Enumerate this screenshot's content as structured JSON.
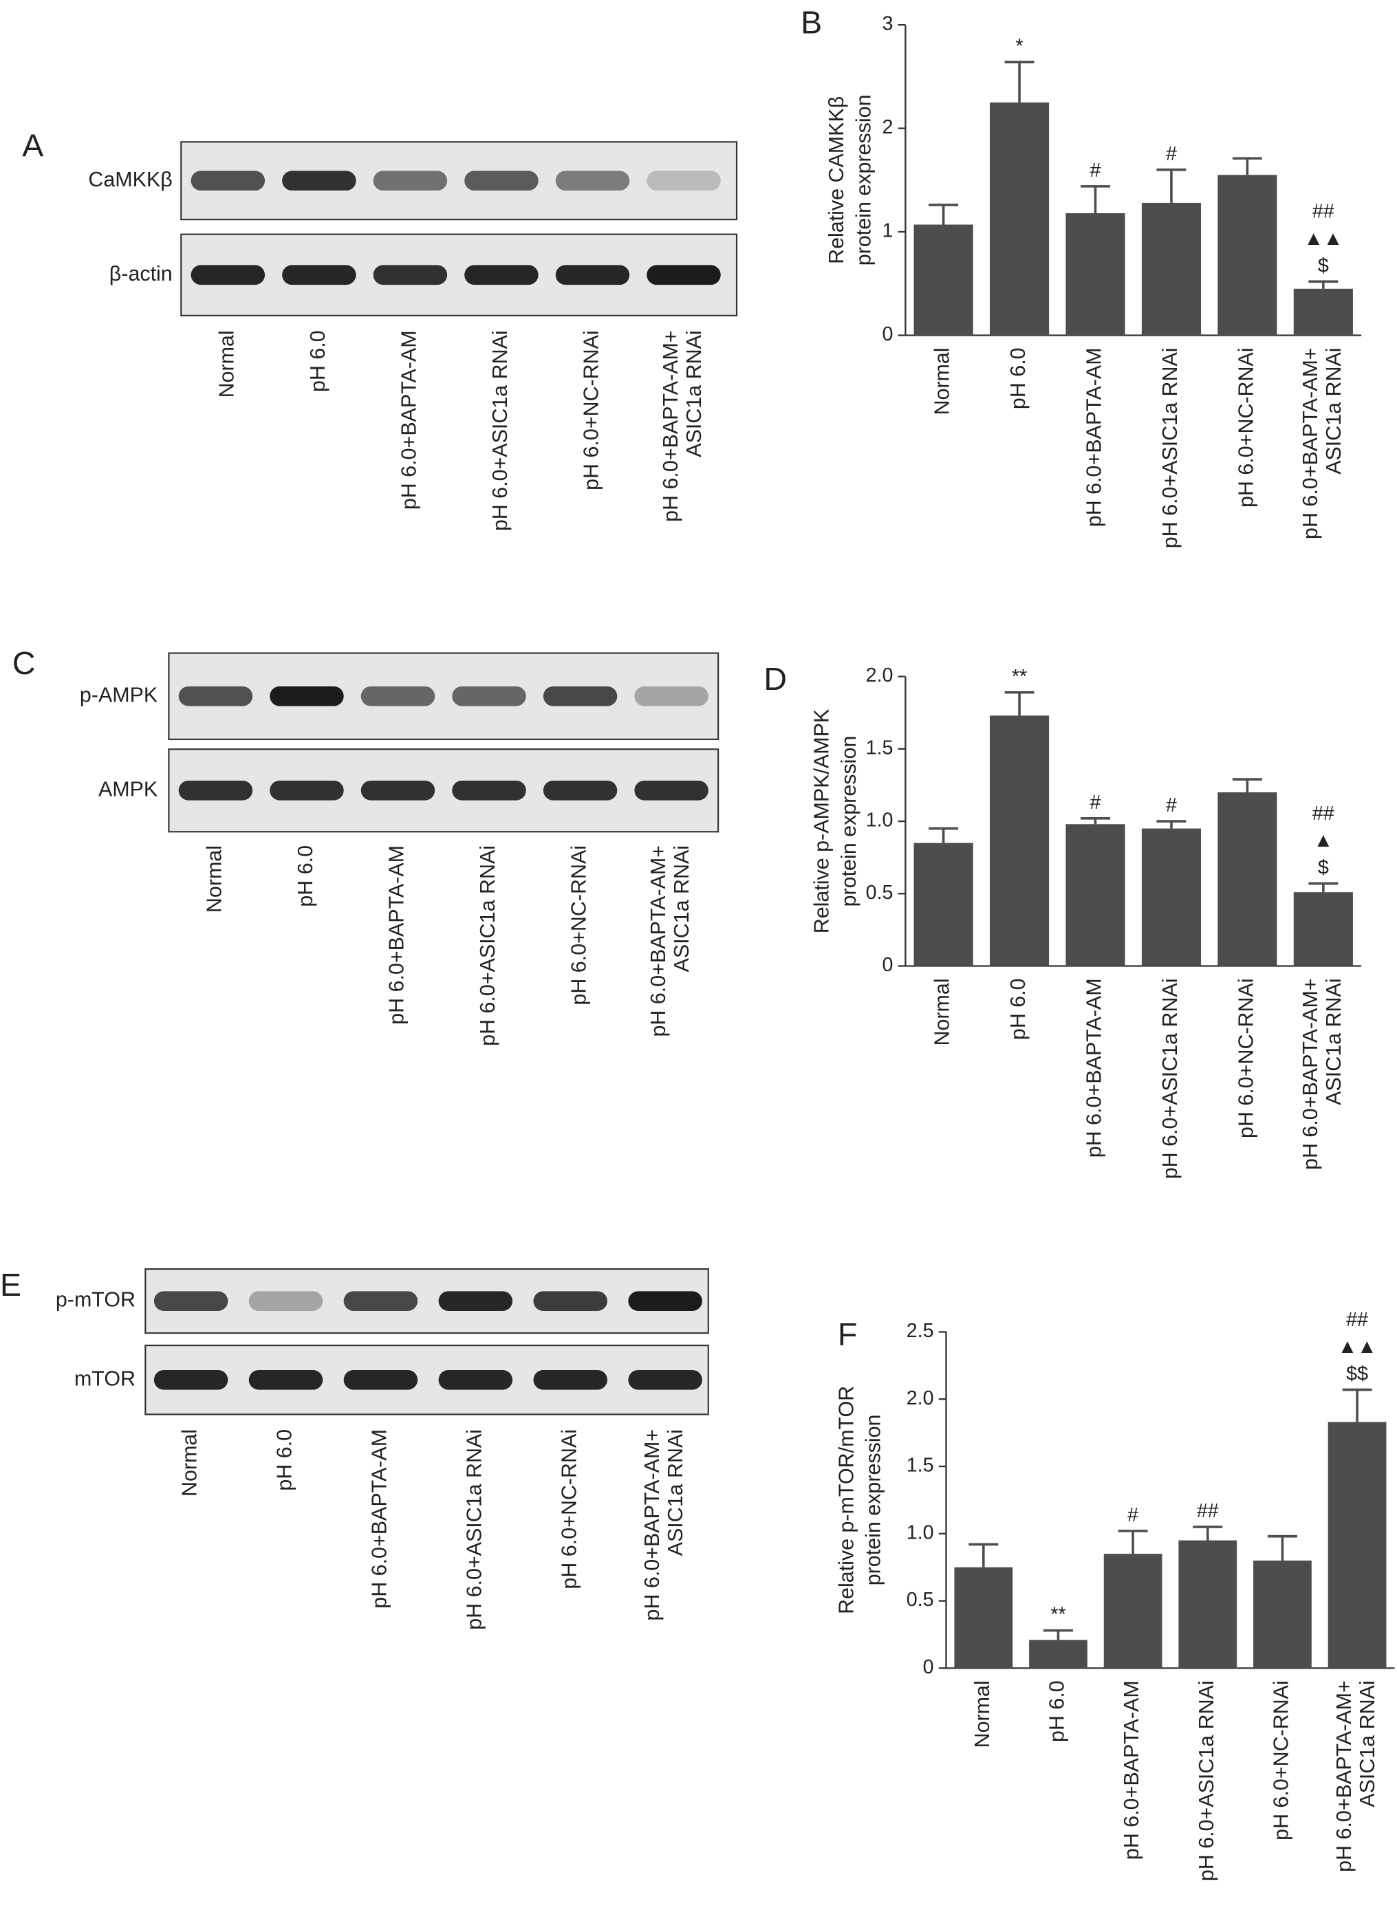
{
  "blots": [
    {
      "panel": "A",
      "rows": [
        "CaMKKβ",
        "β-actin"
      ],
      "lanes": [
        "Normal",
        "pH 6.0",
        "pH 6.0+BAPTA-AM",
        "pH 6.0+ASIC1a RNAi",
        "pH 6.0+NC-RNAi",
        [
          "pH 6.0+BAPTA-AM+",
          "ASIC1a RNAi"
        ]
      ]
    },
    {
      "panel": "C",
      "rows": [
        "p-AMPK",
        "AMPK"
      ],
      "lanes": [
        "Normal",
        "pH 6.0",
        "pH 6.0+BAPTA-AM",
        "pH 6.0+ASIC1a RNAi",
        "pH 6.0+NC-RNAi",
        [
          "pH 6.0+BAPTA-AM+",
          "ASIC1a RNAi"
        ]
      ]
    },
    {
      "panel": "E",
      "rows": [
        "p-mTOR",
        "mTOR"
      ],
      "lanes": [
        "Normal",
        "pH 6.0",
        "pH 6.0+BAPTA-AM",
        "pH 6.0+ASIC1a RNAi",
        "pH 6.0+NC-RNAi",
        [
          "pH 6.0+BAPTA-AM+",
          "ASIC1a RNAi"
        ]
      ]
    }
  ],
  "chart_data": [
    {
      "type": "bar",
      "panel": "B",
      "ylabel": [
        "Relative CAMKKβ",
        "protein expression"
      ],
      "categories": [
        "Normal",
        "pH 6.0",
        "pH 6.0+BAPTA-AM",
        "pH 6.0+ASIC1a RNAi",
        "pH 6.0+NC-RNAi",
        [
          "pH 6.0+BAPTA-AM+",
          "ASIC1a RNAi"
        ]
      ],
      "values": [
        1.07,
        2.25,
        1.18,
        1.28,
        1.55,
        0.45
      ],
      "errors": [
        0.19,
        0.39,
        0.26,
        0.32,
        0.16,
        0.07
      ],
      "annotations": [
        null,
        [
          "*"
        ],
        [
          "#"
        ],
        [
          "#"
        ],
        null,
        [
          "##",
          "▲▲",
          "$"
        ]
      ],
      "color": "#4d4d4d",
      "ylim": [
        0,
        3
      ],
      "yticks": [
        0,
        1,
        2,
        3
      ]
    },
    {
      "type": "bar",
      "panel": "D",
      "ylabel": [
        "Relative p-AMPK/AMPK",
        "protein expression"
      ],
      "categories": [
        "Normal",
        "pH 6.0",
        "pH 6.0+BAPTA-AM",
        "pH 6.0+ASIC1a RNAi",
        "pH 6.0+NC-RNAi",
        [
          "pH 6.0+BAPTA-AM+",
          "ASIC1a RNAi"
        ]
      ],
      "values": [
        0.85,
        1.73,
        0.98,
        0.95,
        1.2,
        0.51
      ],
      "errors": [
        0.1,
        0.16,
        0.04,
        0.05,
        0.09,
        0.06
      ],
      "annotations": [
        null,
        [
          "**"
        ],
        [
          "#"
        ],
        [
          "#"
        ],
        null,
        [
          "##",
          "▲",
          "$"
        ]
      ],
      "color": "#4d4d4d",
      "ylim": [
        0,
        2
      ],
      "yticks": [
        0,
        0.5,
        {
          "value": 1,
          "label": "1.0"
        },
        1.5,
        {
          "value": 2,
          "label": "2.0"
        }
      ]
    },
    {
      "type": "bar",
      "panel": "F",
      "ylabel": [
        "Relative p-mTOR/mTOR",
        "protein expression"
      ],
      "categories": [
        "Normal",
        "pH 6.0",
        "pH 6.0+BAPTA-AM",
        "pH 6.0+ASIC1a RNAi",
        "pH 6.0+NC-RNAi",
        [
          "pH 6.0+BAPTA-AM+",
          "ASIC1a RNAi"
        ]
      ],
      "values": [
        0.75,
        0.21,
        0.85,
        0.95,
        0.8,
        1.83
      ],
      "errors": [
        0.17,
        0.07,
        0.17,
        0.1,
        0.18,
        0.24
      ],
      "annotations": [
        null,
        [
          "**"
        ],
        [
          "#"
        ],
        [
          "##"
        ],
        null,
        [
          "##",
          "▲▲",
          "$$"
        ]
      ],
      "color": "#4d4d4d",
      "ylim": [
        0,
        2.5
      ],
      "yticks": [
        0,
        0.5,
        {
          "value": 1,
          "label": "1.0"
        },
        1.5,
        {
          "value": 2,
          "label": "2.0"
        },
        2.5
      ]
    }
  ]
}
